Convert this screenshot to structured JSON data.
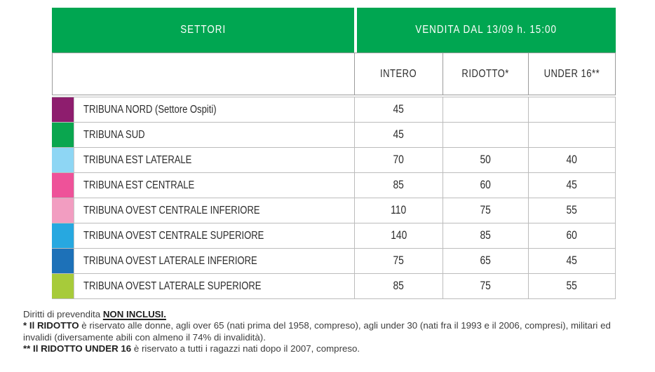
{
  "table": {
    "header": {
      "settori": "SETTORI",
      "vendita": "VENDITA DAL 13/09 h. 15:00"
    },
    "columns": [
      "INTERO",
      "RIDOTTO*",
      "UNDER 16**"
    ],
    "rows": [
      {
        "color": "#8E1D6E",
        "name": "TRIBUNA NORD (Settore Ospiti)",
        "intero": "45",
        "ridotto": "",
        "under16": ""
      },
      {
        "color": "#0AA64F",
        "name": "TRIBUNA SUD",
        "intero": "45",
        "ridotto": "",
        "under16": ""
      },
      {
        "color": "#8ED6F4",
        "name": "TRIBUNA EST LATERALE",
        "intero": "70",
        "ridotto": "50",
        "under16": "40"
      },
      {
        "color": "#EE5299",
        "name": "TRIBUNA EST CENTRALE",
        "intero": "85",
        "ridotto": "60",
        "under16": "45"
      },
      {
        "color": "#F29DC1",
        "name": "TRIBUNA OVEST CENTRALE INFERIORE",
        "intero": "110",
        "ridotto": "75",
        "under16": "55"
      },
      {
        "color": "#27A8E0",
        "name": "TRIBUNA OVEST CENTRALE SUPERIORE",
        "intero": "140",
        "ridotto": "85",
        "under16": "60"
      },
      {
        "color": "#1D71B8",
        "name": "TRIBUNA OVEST LATERALE INFERIORE",
        "intero": "75",
        "ridotto": "65",
        "under16": "45"
      },
      {
        "color": "#A7CB3A",
        "name": "TRIBUNA OVEST LATERALE SUPERIORE",
        "intero": "85",
        "ridotto": "75",
        "under16": "55"
      }
    ]
  },
  "notes": {
    "prevendita_text": "Diritti di prevendita ",
    "prevendita_bold": "NON INCLUSI.",
    "ridotto_bold": "* Il RIDOTTO",
    "ridotto_text": " è riservato alle donne, agli over 65 (nati prima del 1958, compreso), agli under 30 (nati fra il 1993 e il 2006, compresi), militari ed invalidi (diversamente abili con almeno il 74% di invalidità).",
    "under16_bold": "** Il RIDOTTO UNDER 16",
    "under16_text": " è riservato a tutti i ragazzi nati dopo il 2007, compreso."
  },
  "colors": {
    "header_green": "#00A651",
    "border_gray": "#BCBCBC",
    "text_dark": "#2B2B2B"
  }
}
